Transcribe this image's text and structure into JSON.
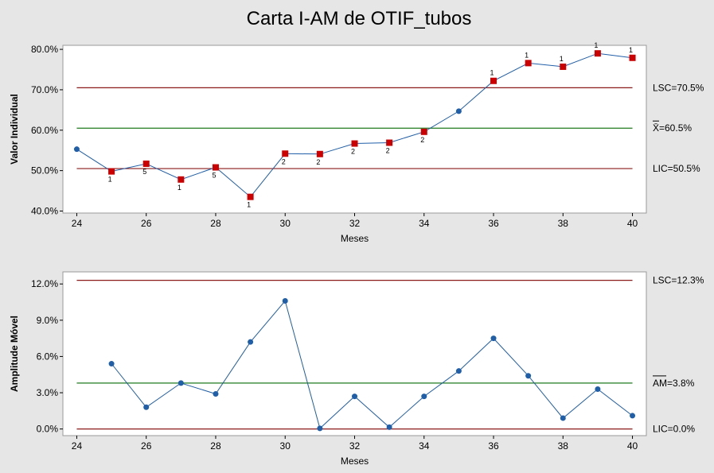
{
  "title": "Carta I-AM de OTIF_tubos",
  "chart_data": [
    {
      "type": "line",
      "name": "individual",
      "ylabel": "Valor Individual",
      "xlabel": "Meses",
      "x": [
        24,
        25,
        26,
        27,
        28,
        29,
        30,
        31,
        32,
        33,
        34,
        35,
        36,
        37,
        38,
        39,
        40
      ],
      "values": [
        55.3,
        49.8,
        51.7,
        47.8,
        50.8,
        43.5,
        54.2,
        54.1,
        56.7,
        56.9,
        59.6,
        64.7,
        72.2,
        76.6,
        75.7,
        79.0,
        77.9
      ],
      "xlim": [
        23.6,
        40.4
      ],
      "ylim": [
        39.5,
        81.0
      ],
      "yticks": [
        40,
        50,
        60,
        70,
        80
      ],
      "ytick_labels": [
        "40.0%",
        "50.0%",
        "60.0%",
        "70.0%",
        "80.0%"
      ],
      "xticks": [
        24,
        26,
        28,
        30,
        32,
        34,
        36,
        38,
        40
      ],
      "xtick_labels": [
        "24",
        "26",
        "28",
        "30",
        "32",
        "34",
        "36",
        "38",
        "40"
      ],
      "limits": [
        {
          "kind": "upper",
          "value": 70.5,
          "label": "LSC=70.5%",
          "color": "#8b1a1a"
        },
        {
          "kind": "center",
          "value": 60.5,
          "label": "X̄=60.5%",
          "color": "#1e7a1e"
        },
        {
          "kind": "lower",
          "value": 50.5,
          "label": "LIC=50.5%",
          "color": "#8b1a1a"
        }
      ],
      "flagged": [
        {
          "x": 25,
          "test": "1",
          "pos": "below"
        },
        {
          "x": 26,
          "test": "5",
          "pos": "below"
        },
        {
          "x": 27,
          "test": "1",
          "pos": "below"
        },
        {
          "x": 28,
          "test": "5",
          "pos": "below"
        },
        {
          "x": 29,
          "test": "1",
          "pos": "below"
        },
        {
          "x": 30,
          "test": "2",
          "pos": "below"
        },
        {
          "x": 31,
          "test": "2",
          "pos": "below"
        },
        {
          "x": 32,
          "test": "2",
          "pos": "below"
        },
        {
          "x": 33,
          "test": "2",
          "pos": "below"
        },
        {
          "x": 34,
          "test": "2",
          "pos": "below"
        },
        {
          "x": 36,
          "test": "1",
          "pos": "above"
        },
        {
          "x": 37,
          "test": "1",
          "pos": "above"
        },
        {
          "x": 38,
          "test": "1",
          "pos": "above"
        },
        {
          "x": 39,
          "test": "1",
          "pos": "above"
        },
        {
          "x": 40,
          "test": "1",
          "pos": "above"
        }
      ]
    },
    {
      "type": "line",
      "name": "moving-range",
      "ylabel": "Amplitude Móvel",
      "xlabel": "Meses",
      "x": [
        25,
        26,
        27,
        28,
        29,
        30,
        31,
        32,
        33,
        34,
        35,
        36,
        37,
        38,
        39,
        40
      ],
      "values": [
        5.4,
        1.8,
        3.8,
        2.9,
        7.2,
        10.6,
        0.05,
        2.7,
        0.15,
        2.7,
        4.8,
        7.5,
        4.4,
        0.9,
        3.3,
        1.1
      ],
      "xlim": [
        23.6,
        40.4
      ],
      "ylim": [
        -0.55,
        13.0
      ],
      "yticks": [
        0,
        3,
        6,
        9,
        12
      ],
      "ytick_labels": [
        "0.0%",
        "3.0%",
        "6.0%",
        "9.0%",
        "12.0%"
      ],
      "xticks": [
        24,
        26,
        28,
        30,
        32,
        34,
        36,
        38,
        40
      ],
      "xtick_labels": [
        "24",
        "26",
        "28",
        "30",
        "32",
        "34",
        "36",
        "38",
        "40"
      ],
      "limits": [
        {
          "kind": "upper",
          "value": 12.3,
          "label": "LSC=12.3%",
          "color": "#8b1a1a"
        },
        {
          "kind": "center",
          "value": 3.8,
          "label": "AM=3.8%",
          "color": "#1e7a1e"
        },
        {
          "kind": "lower",
          "value": 0.0,
          "label": "LIC=0.0%",
          "color": "#8b1a1a"
        }
      ],
      "flagged": []
    }
  ],
  "colors": {
    "line": "#1f5ea8",
    "point": "#1f5ea8",
    "flagged_point": "#cc0000",
    "plot_bg": "#ffffff",
    "page_bg": "#e6e6e6"
  }
}
